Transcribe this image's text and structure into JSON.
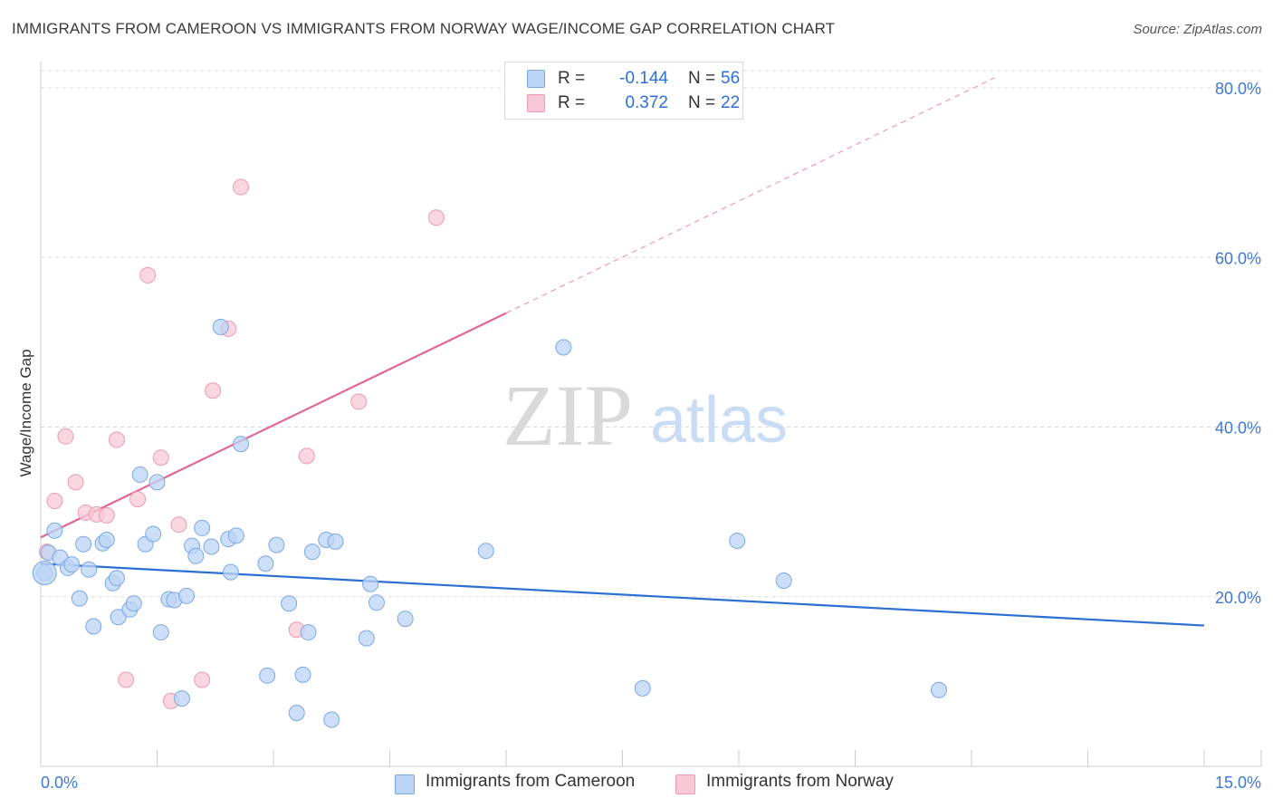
{
  "title": "IMMIGRANTS FROM CAMEROON VS IMMIGRANTS FROM NORWAY WAGE/INCOME GAP CORRELATION CHART",
  "source": "Source: ZipAtlas.com",
  "watermark": {
    "zip": "ZIP",
    "atlas": "atlas"
  },
  "legend": {
    "rows": [
      {
        "r_label": "R =",
        "r_value": "-0.144",
        "n_label": "N =",
        "n_value": "56"
      },
      {
        "r_label": "R =",
        "r_value": "0.372",
        "n_label": "N =",
        "n_value": "22"
      }
    ]
  },
  "colors": {
    "cameroon_fill": "#bcd4f5",
    "cameroon_stroke": "#7aa7e6",
    "cameroon_line": "#2a6fd1",
    "norway_fill": "#f8c8d6",
    "norway_stroke": "#eb9ab4",
    "norway_line": "#e06890",
    "axis_text": "#3f78d1",
    "grid": "#d8d8d8"
  },
  "chart_data": {
    "type": "scatter",
    "title": "IMMIGRANTS FROM CAMEROON VS IMMIGRANTS FROM NORWAY WAGE/INCOME GAP CORRELATION CHART",
    "xlabel": "",
    "ylabel": "Wage/Income Gap",
    "xlim": [
      0,
      15
    ],
    "ylim": [
      0,
      80
    ],
    "x_tick_labels": [
      "0.0%",
      "15.0%"
    ],
    "y_ticks": [
      20,
      40,
      60,
      80
    ],
    "y_tick_labels": [
      "20.0%",
      "40.0%",
      "60.0%",
      "80.0%"
    ],
    "grid": true,
    "legend_position": "top-center",
    "series": [
      {
        "name": "Immigrants from Cameroon",
        "color": "#7aa7e6",
        "R": -0.144,
        "N": 56,
        "trend": {
          "x": [
            0,
            15
          ],
          "y": [
            23.9,
            16.6
          ],
          "solid_to": 15
        },
        "points": [
          [
            0.05,
            22.8
          ],
          [
            0.1,
            25.2
          ],
          [
            0.18,
            27.8
          ],
          [
            0.25,
            24.6
          ],
          [
            0.35,
            23.4
          ],
          [
            0.4,
            23.8
          ],
          [
            0.5,
            19.8
          ],
          [
            0.55,
            26.2
          ],
          [
            0.62,
            23.2
          ],
          [
            0.68,
            16.5
          ],
          [
            0.8,
            26.3
          ],
          [
            0.85,
            26.7
          ],
          [
            0.93,
            21.6
          ],
          [
            0.98,
            22.2
          ],
          [
            1.0,
            17.6
          ],
          [
            1.15,
            18.5
          ],
          [
            1.2,
            19.2
          ],
          [
            1.28,
            34.4
          ],
          [
            1.35,
            26.2
          ],
          [
            1.45,
            27.4
          ],
          [
            1.5,
            33.5
          ],
          [
            1.55,
            15.8
          ],
          [
            1.65,
            19.7
          ],
          [
            1.72,
            19.6
          ],
          [
            1.82,
            8.0
          ],
          [
            1.88,
            20.1
          ],
          [
            1.95,
            26.0
          ],
          [
            2.0,
            24.8
          ],
          [
            2.08,
            28.1
          ],
          [
            2.2,
            25.9
          ],
          [
            2.32,
            51.8
          ],
          [
            2.42,
            26.8
          ],
          [
            2.45,
            22.9
          ],
          [
            2.52,
            27.2
          ],
          [
            2.58,
            38.0
          ],
          [
            2.9,
            23.9
          ],
          [
            2.92,
            10.7
          ],
          [
            3.04,
            26.1
          ],
          [
            3.2,
            19.2
          ],
          [
            3.3,
            6.3
          ],
          [
            3.38,
            10.8
          ],
          [
            3.45,
            15.8
          ],
          [
            3.5,
            25.3
          ],
          [
            3.68,
            26.7
          ],
          [
            3.75,
            5.5
          ],
          [
            3.8,
            26.5
          ],
          [
            4.2,
            15.1
          ],
          [
            4.25,
            21.5
          ],
          [
            4.33,
            19.3
          ],
          [
            4.7,
            17.4
          ],
          [
            5.74,
            25.4
          ],
          [
            6.74,
            49.4
          ],
          [
            7.76,
            9.2
          ],
          [
            8.98,
            26.6
          ],
          [
            9.58,
            21.9
          ],
          [
            11.58,
            9.0
          ]
        ]
      },
      {
        "name": "Immigrants from Norway",
        "color": "#eb9ab4",
        "R": 0.372,
        "N": 22,
        "trend": {
          "x": [
            0,
            12.3
          ],
          "y": [
            27.0,
            81.2
          ],
          "solid_to": 6.0
        },
        "points": [
          [
            0.08,
            25.3
          ],
          [
            0.18,
            31.3
          ],
          [
            0.32,
            38.9
          ],
          [
            0.45,
            33.5
          ],
          [
            0.58,
            29.9
          ],
          [
            0.72,
            29.7
          ],
          [
            0.85,
            29.6
          ],
          [
            0.98,
            38.5
          ],
          [
            1.1,
            10.2
          ],
          [
            1.25,
            31.5
          ],
          [
            1.38,
            57.9
          ],
          [
            1.55,
            36.4
          ],
          [
            1.68,
            7.7
          ],
          [
            1.78,
            28.5
          ],
          [
            2.08,
            10.2
          ],
          [
            2.22,
            44.3
          ],
          [
            2.42,
            51.6
          ],
          [
            2.58,
            68.3
          ],
          [
            3.3,
            16.1
          ],
          [
            3.43,
            36.6
          ],
          [
            4.1,
            43.0
          ],
          [
            5.1,
            64.7
          ]
        ]
      }
    ]
  },
  "axes": {
    "y_label": "Wage/Income Gap",
    "x_min_label": "0.0%",
    "x_max_label": "15.0%",
    "y_tick_labels": [
      "20.0%",
      "40.0%",
      "60.0%",
      "80.0%"
    ]
  },
  "bottom_legend": [
    {
      "label": "Immigrants from Cameroon"
    },
    {
      "label": "Immigrants from Norway"
    }
  ]
}
